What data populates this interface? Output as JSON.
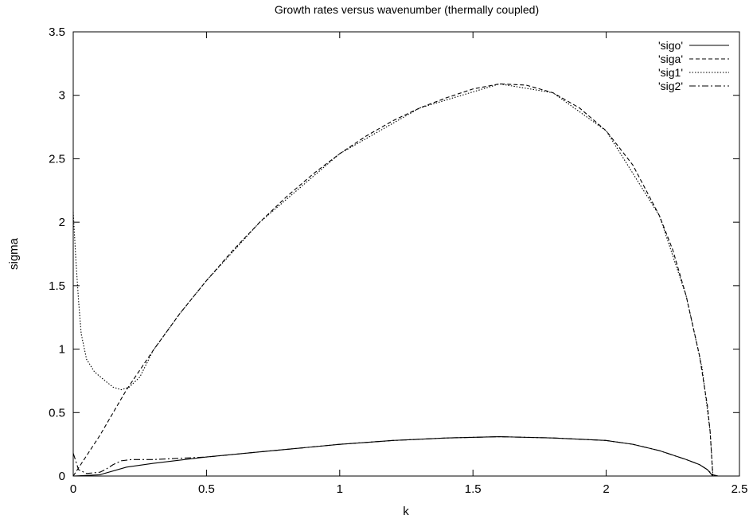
{
  "chart_data": {
    "type": "line",
    "title": "Growth rates versus wavenumber (thermally coupled)",
    "xlabel": "k",
    "ylabel": "sigma",
    "xlim": [
      0,
      2.5
    ],
    "ylim": [
      0,
      3.5
    ],
    "xticks": [
      "0",
      "0.5",
      "1",
      "1.5",
      "2",
      "2.5"
    ],
    "yticks": [
      "0",
      "0.5",
      "1",
      "1.5",
      "2",
      "2.5",
      "3",
      "3.5"
    ],
    "grid": false,
    "legend_position": "top-right",
    "series": [
      {
        "name": "'sigo'",
        "dash": "solid",
        "points": [
          [
            0,
            0
          ],
          [
            0.1,
            0.01
          ],
          [
            0.2,
            0.07
          ],
          [
            0.3,
            0.1
          ],
          [
            0.5,
            0.15
          ],
          [
            0.75,
            0.2
          ],
          [
            1.0,
            0.25
          ],
          [
            1.2,
            0.28
          ],
          [
            1.4,
            0.3
          ],
          [
            1.6,
            0.31
          ],
          [
            1.8,
            0.3
          ],
          [
            2.0,
            0.28
          ],
          [
            2.1,
            0.25
          ],
          [
            2.2,
            0.2
          ],
          [
            2.3,
            0.13
          ],
          [
            2.35,
            0.09
          ],
          [
            2.38,
            0.05
          ],
          [
            2.4,
            0.0
          ]
        ]
      },
      {
        "name": "'siga'",
        "dash": "dashed",
        "points": [
          [
            0,
            0
          ],
          [
            0.1,
            0.32
          ],
          [
            0.2,
            0.68
          ],
          [
            0.3,
            0.99
          ],
          [
            0.4,
            1.28
          ],
          [
            0.5,
            1.54
          ],
          [
            0.6,
            1.78
          ],
          [
            0.7,
            2.0
          ],
          [
            0.8,
            2.2
          ],
          [
            0.9,
            2.38
          ],
          [
            1.0,
            2.54
          ],
          [
            1.1,
            2.68
          ],
          [
            1.2,
            2.8
          ],
          [
            1.3,
            2.9
          ],
          [
            1.4,
            2.98
          ],
          [
            1.5,
            3.05
          ],
          [
            1.6,
            3.09
          ],
          [
            1.7,
            3.08
          ],
          [
            1.8,
            3.02
          ],
          [
            1.9,
            2.9
          ],
          [
            2.0,
            2.72
          ],
          [
            2.1,
            2.45
          ],
          [
            2.2,
            2.05
          ],
          [
            2.25,
            1.78
          ],
          [
            2.3,
            1.42
          ],
          [
            2.35,
            0.95
          ],
          [
            2.38,
            0.55
          ],
          [
            2.39,
            0.35
          ],
          [
            2.4,
            0.0
          ]
        ]
      },
      {
        "name": "'sig1'",
        "dash": "dotted",
        "points": [
          [
            0.0,
            2.08
          ],
          [
            0.01,
            1.7
          ],
          [
            0.02,
            1.38
          ],
          [
            0.03,
            1.12
          ],
          [
            0.05,
            0.92
          ],
          [
            0.08,
            0.82
          ],
          [
            0.12,
            0.75
          ],
          [
            0.15,
            0.7
          ],
          [
            0.18,
            0.68
          ],
          [
            0.21,
            0.7
          ],
          [
            0.25,
            0.78
          ],
          [
            0.3,
            0.99
          ],
          [
            0.4,
            1.28
          ],
          [
            0.5,
            1.54
          ],
          [
            0.7,
            2.0
          ],
          [
            1.0,
            2.54
          ],
          [
            1.3,
            2.9
          ],
          [
            1.6,
            3.09
          ],
          [
            1.8,
            3.02
          ],
          [
            2.0,
            2.72
          ],
          [
            2.2,
            2.05
          ],
          [
            2.3,
            1.42
          ],
          [
            2.36,
            0.85
          ],
          [
            2.39,
            0.35
          ],
          [
            2.4,
            0.02
          ]
        ]
      },
      {
        "name": "'sig2'",
        "dash": "dashdot",
        "points": [
          [
            0.0,
            0.18
          ],
          [
            0.02,
            0.05
          ],
          [
            0.05,
            0.02
          ],
          [
            0.1,
            0.03
          ],
          [
            0.12,
            0.05
          ],
          [
            0.15,
            0.09
          ],
          [
            0.18,
            0.12
          ],
          [
            0.22,
            0.13
          ],
          [
            0.3,
            0.13
          ],
          [
            0.5,
            0.15
          ],
          [
            0.75,
            0.2
          ],
          [
            1.0,
            0.25
          ],
          [
            1.2,
            0.28
          ],
          [
            1.4,
            0.3
          ],
          [
            1.6,
            0.31
          ],
          [
            1.8,
            0.3
          ],
          [
            2.0,
            0.28
          ],
          [
            2.1,
            0.25
          ],
          [
            2.2,
            0.2
          ],
          [
            2.3,
            0.13
          ],
          [
            2.35,
            0.09
          ],
          [
            2.38,
            0.05
          ],
          [
            2.4,
            0.01
          ],
          [
            2.42,
            0.0
          ]
        ]
      }
    ]
  }
}
